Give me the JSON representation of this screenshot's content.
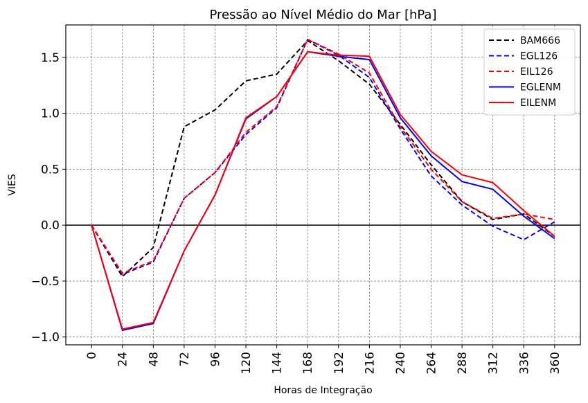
{
  "chart_data": {
    "type": "line",
    "title": "Pressão ao Nível Médio do Mar [hPa]",
    "xlabel": "Horas de Integração",
    "ylabel": "VIES",
    "x": [
      0,
      24,
      48,
      72,
      96,
      120,
      144,
      168,
      192,
      216,
      240,
      264,
      288,
      312,
      336,
      360
    ],
    "x_tick_labels": [
      "0",
      "24",
      "48",
      "72",
      "96",
      "120",
      "144",
      "168",
      "192",
      "216",
      "240",
      "264",
      "288",
      "312",
      "336",
      "360"
    ],
    "y_ticks": [
      -1.0,
      -0.5,
      0.0,
      0.5,
      1.0,
      1.5
    ],
    "y_tick_labels": [
      "−1.0",
      "−0.5",
      "0.0",
      "0.5",
      "1.0",
      "1.5"
    ],
    "xlim": [
      -20,
      380
    ],
    "ylim": [
      -1.07,
      1.79
    ],
    "grid": true,
    "legend_position": "top-right",
    "series": [
      {
        "name": "BAM666",
        "color": "#000000",
        "dash": true,
        "values": [
          0.0,
          -0.46,
          -0.2,
          0.88,
          1.03,
          1.29,
          1.35,
          1.65,
          1.47,
          1.26,
          0.9,
          0.54,
          0.21,
          0.05,
          0.1,
          -0.1
        ]
      },
      {
        "name": "EGL126",
        "color": "#0000ff",
        "dash": true,
        "values": [
          0.0,
          -0.44,
          -0.33,
          0.24,
          0.47,
          0.81,
          1.05,
          1.66,
          1.52,
          1.32,
          0.86,
          0.44,
          0.18,
          -0.01,
          -0.13,
          0.03
        ]
      },
      {
        "name": "EIL126",
        "color": "#ff0000",
        "dash": true,
        "values": [
          0.0,
          -0.43,
          -0.32,
          0.24,
          0.47,
          0.83,
          1.06,
          1.66,
          1.53,
          1.36,
          0.88,
          0.5,
          0.21,
          0.06,
          0.1,
          0.05
        ]
      },
      {
        "name": "EGLENM",
        "color": "#0000ff",
        "dash": false,
        "values": [
          0.0,
          -0.94,
          -0.88,
          -0.23,
          0.27,
          0.95,
          1.15,
          1.55,
          1.51,
          1.48,
          0.96,
          0.62,
          0.39,
          0.32,
          0.08,
          -0.12
        ]
      },
      {
        "name": "EILENM",
        "color": "#ff0000",
        "dash": false,
        "values": [
          0.0,
          -0.93,
          -0.87,
          -0.23,
          0.27,
          0.96,
          1.15,
          1.55,
          1.52,
          1.51,
          0.99,
          0.66,
          0.45,
          0.38,
          0.13,
          -0.1
        ]
      }
    ]
  }
}
